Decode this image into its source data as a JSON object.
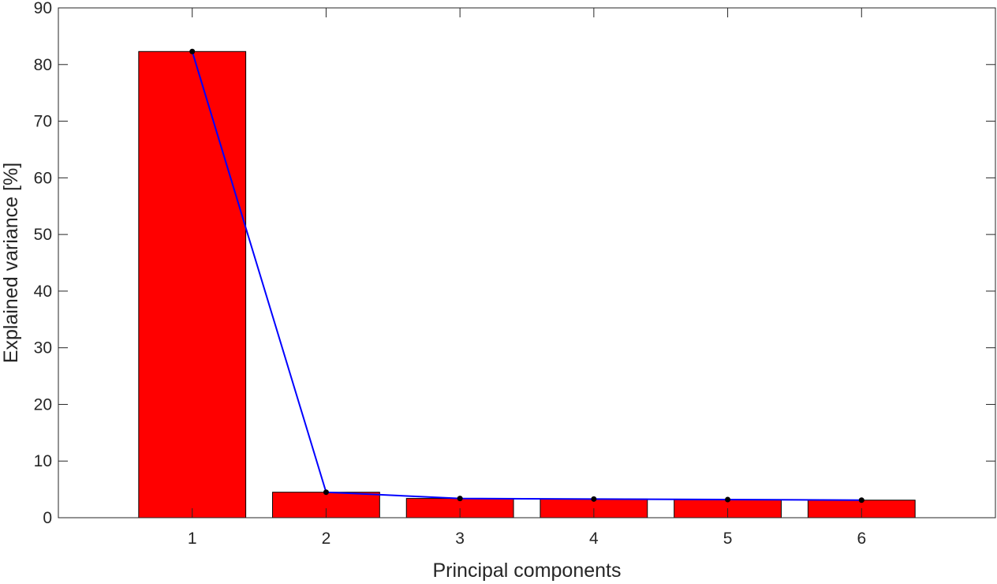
{
  "chart_data": {
    "type": "bar",
    "title": "",
    "xlabel": "Principal components",
    "ylabel": "Explained variance [%]",
    "categories": [
      "1",
      "2",
      "3",
      "4",
      "5",
      "6"
    ],
    "x": [
      1,
      2,
      3,
      4,
      5,
      6
    ],
    "values": [
      82.3,
      4.5,
      3.4,
      3.3,
      3.2,
      3.1
    ],
    "line_values": [
      82.3,
      4.5,
      3.4,
      3.3,
      3.2,
      3.1
    ],
    "xlim": [
      0,
      7
    ],
    "ylim": [
      0,
      90
    ],
    "yticks": [
      0,
      10,
      20,
      30,
      40,
      50,
      60,
      70,
      80,
      90
    ],
    "grid": false,
    "legend": "none",
    "colors": {
      "bar_fill": "#ff0000",
      "bar_edge": "#000000",
      "line": "#0000ff",
      "marker": "#000000",
      "axes": "#262626"
    }
  }
}
